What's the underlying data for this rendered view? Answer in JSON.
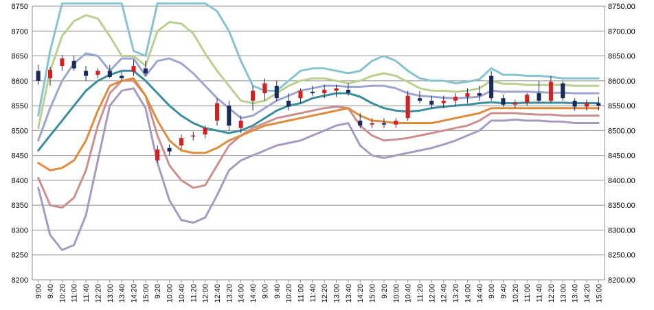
{
  "chart_data": {
    "type": "line",
    "title": "",
    "xlabel": "",
    "ylabel": "",
    "y_left_ticks": [
      "8200",
      "8250",
      "8300",
      "8350",
      "8400",
      "8450",
      "8500",
      "8550",
      "8600",
      "8650",
      "8700",
      "8750"
    ],
    "y_right_ticks": [
      "8200.00",
      "8250.00",
      "8300.00",
      "8350.00",
      "8400.00",
      "8450.00",
      "8500.00",
      "8550.00",
      "8600.00",
      "8650.00",
      "8700.00",
      "8750.00"
    ],
    "ylim": [
      8200,
      8750
    ],
    "grid": true,
    "legend": "none",
    "x_tick_labels": [
      "9:00",
      "9:40",
      "10:20",
      "11:00",
      "11:40",
      "12:20",
      "13:00",
      "13:40",
      "14:20",
      "15:00",
      "9:20",
      "10:00",
      "10:40",
      "11:20",
      "12:00",
      "12:40",
      "13:20",
      "14:00",
      "14:40",
      "9:00",
      "9:40",
      "10:20",
      "11:00",
      "11:40",
      "12:20",
      "13:00",
      "13:40",
      "14:20",
      "15:00",
      "9:20",
      "10:00",
      "10:40",
      "11:20",
      "12:00",
      "12:40",
      "13:20",
      "14:00",
      "14:40",
      "9:00",
      "9:40",
      "10:20",
      "11:00",
      "11:40",
      "12:20",
      "13:00",
      "13:40",
      "14:20",
      "15:00"
    ],
    "x_count": 48,
    "series": [
      {
        "color": "#86c3d0",
        "values": [
          8530,
          8660,
          8760,
          8760,
          8760,
          8760,
          8760,
          8760,
          8660,
          8650,
          8760,
          8760,
          8760,
          8760,
          8760,
          8740,
          8700,
          8640,
          8590,
          8580,
          8580,
          8600,
          8620,
          8625,
          8625,
          8620,
          8615,
          8620,
          8640,
          8650,
          8640,
          8620,
          8605,
          8600,
          8600,
          8595,
          8598,
          8603,
          8625,
          8612,
          8612,
          8610,
          8610,
          8608,
          8605,
          8605,
          8605,
          8605
        ]
      },
      {
        "color": "#b9cf8e",
        "values": [
          8505,
          8620,
          8690,
          8720,
          8732,
          8725,
          8690,
          8650,
          8650,
          8630,
          8700,
          8718,
          8715,
          8695,
          8655,
          8620,
          8590,
          8560,
          8555,
          8560,
          8575,
          8590,
          8600,
          8605,
          8605,
          8600,
          8595,
          8600,
          8610,
          8615,
          8610,
          8598,
          8585,
          8580,
          8580,
          8578,
          8580,
          8585,
          8600,
          8594,
          8594,
          8592,
          8592,
          8592,
          8592,
          8590,
          8590,
          8590
        ]
      },
      {
        "color": "#9ca5cf",
        "values": [
          8480,
          8545,
          8600,
          8635,
          8655,
          8650,
          8620,
          8645,
          8645,
          8610,
          8640,
          8645,
          8635,
          8615,
          8590,
          8565,
          8545,
          8525,
          8530,
          8545,
          8560,
          8570,
          8580,
          8585,
          8590,
          8590,
          8588,
          8588,
          8590,
          8590,
          8585,
          8575,
          8570,
          8568,
          8566,
          8565,
          8566,
          8568,
          8580,
          8578,
          8578,
          8578,
          8577,
          8576,
          8576,
          8575,
          8575,
          8575
        ]
      },
      {
        "color": "#3b8d9b",
        "values": [
          8460,
          8490,
          8520,
          8550,
          8580,
          8600,
          8612,
          8620,
          8620,
          8600,
          8575,
          8550,
          8530,
          8515,
          8505,
          8500,
          8495,
          8500,
          8510,
          8525,
          8540,
          8550,
          8555,
          8565,
          8570,
          8575,
          8575,
          8568,
          8555,
          8545,
          8540,
          8538,
          8540,
          8545,
          8548,
          8550,
          8552,
          8555,
          8557,
          8555,
          8555,
          8556,
          8556,
          8556,
          8556,
          8555,
          8555,
          8555
        ]
      },
      {
        "color": "#cc8f8f",
        "values": [
          8405,
          8350,
          8345,
          8365,
          8420,
          8510,
          8575,
          8600,
          8600,
          8570,
          8490,
          8430,
          8400,
          8385,
          8390,
          8430,
          8470,
          8490,
          8505,
          8515,
          8525,
          8530,
          8535,
          8540,
          8545,
          8548,
          8545,
          8510,
          8490,
          8480,
          8482,
          8485,
          8490,
          8495,
          8500,
          8505,
          8510,
          8520,
          8535,
          8535,
          8535,
          8533,
          8532,
          8532,
          8530,
          8530,
          8530,
          8530
        ]
      },
      {
        "color": "#a79ac1",
        "values": [
          8385,
          8290,
          8260,
          8270,
          8330,
          8440,
          8550,
          8580,
          8585,
          8545,
          8435,
          8360,
          8320,
          8315,
          8325,
          8370,
          8420,
          8440,
          8450,
          8460,
          8470,
          8475,
          8480,
          8490,
          8500,
          8510,
          8515,
          8470,
          8450,
          8445,
          8450,
          8455,
          8460,
          8465,
          8472,
          8480,
          8490,
          8500,
          8520,
          8520,
          8522,
          8520,
          8520,
          8518,
          8518,
          8515,
          8515,
          8515
        ]
      },
      {
        "color": "#e08a3c",
        "values": [
          8435,
          8420,
          8425,
          8440,
          8480,
          8540,
          8590,
          8600,
          8605,
          8570,
          8520,
          8480,
          8460,
          8455,
          8455,
          8465,
          8480,
          8490,
          8500,
          8510,
          8515,
          8520,
          8525,
          8530,
          8535,
          8540,
          8545,
          8530,
          8520,
          8518,
          8515,
          8515,
          8515,
          8515,
          8520,
          8525,
          8530,
          8535,
          8545,
          8545,
          8545,
          8545,
          8545,
          8545,
          8545,
          8545,
          8545,
          8545
        ]
      }
    ],
    "candles": {
      "up_color": "#d62020",
      "down_color": "#1c2a5a",
      "ohlc": [
        [
          8620,
          8632,
          8592,
          8600
        ],
        [
          8605,
          8628,
          8590,
          8622
        ],
        [
          8630,
          8652,
          8620,
          8645
        ],
        [
          8640,
          8650,
          8620,
          8625
        ],
        [
          8620,
          8630,
          8600,
          8610
        ],
        [
          8612,
          8625,
          8605,
          8620
        ],
        [
          8620,
          8632,
          8605,
          8608
        ],
        [
          8610,
          8618,
          8600,
          8605
        ],
        [
          8618,
          8642,
          8610,
          8630
        ],
        [
          8625,
          8640,
          8610,
          8615
        ],
        [
          8440,
          8470,
          8435,
          8462
        ],
        [
          8465,
          8472,
          8450,
          8458
        ],
        [
          8470,
          8492,
          8462,
          8485
        ],
        [
          8488,
          8498,
          8480,
          8490
        ],
        [
          8492,
          8510,
          8485,
          8505
        ],
        [
          8520,
          8565,
          8510,
          8555
        ],
        [
          8550,
          8560,
          8500,
          8510
        ],
        [
          8505,
          8530,
          8495,
          8520
        ],
        [
          8560,
          8590,
          8540,
          8580
        ],
        [
          8575,
          8605,
          8560,
          8595
        ],
        [
          8590,
          8600,
          8560,
          8565
        ],
        [
          8560,
          8575,
          8540,
          8548
        ],
        [
          8565,
          8585,
          8555,
          8580
        ],
        [
          8578,
          8590,
          8570,
          8575
        ],
        [
          8575,
          8592,
          8565,
          8582
        ],
        [
          8580,
          8592,
          8568,
          8585
        ],
        [
          8582,
          8595,
          8570,
          8576
        ],
        [
          8520,
          8535,
          8505,
          8510
        ],
        [
          8512,
          8525,
          8505,
          8515
        ],
        [
          8515,
          8525,
          8505,
          8512
        ],
        [
          8512,
          8525,
          8505,
          8520
        ],
        [
          8525,
          8580,
          8520,
          8570
        ],
        [
          8565,
          8580,
          8555,
          8560
        ],
        [
          8560,
          8570,
          8545,
          8552
        ],
        [
          8555,
          8570,
          8545,
          8560
        ],
        [
          8560,
          8575,
          8550,
          8568
        ],
        [
          8568,
          8585,
          8555,
          8575
        ],
        [
          8575,
          8590,
          8560,
          8570
        ],
        [
          8610,
          8620,
          8560,
          8565
        ],
        [
          8565,
          8572,
          8548,
          8552
        ],
        [
          8552,
          8562,
          8545,
          8556
        ],
        [
          8556,
          8575,
          8550,
          8572
        ],
        [
          8575,
          8600,
          8555,
          8560
        ],
        [
          8560,
          8610,
          8555,
          8598
        ],
        [
          8595,
          8600,
          8560,
          8565
        ],
        [
          8560,
          8565,
          8540,
          8548
        ],
        [
          8548,
          8562,
          8540,
          8555
        ],
        [
          8555,
          8568,
          8540,
          8550
        ]
      ]
    }
  }
}
